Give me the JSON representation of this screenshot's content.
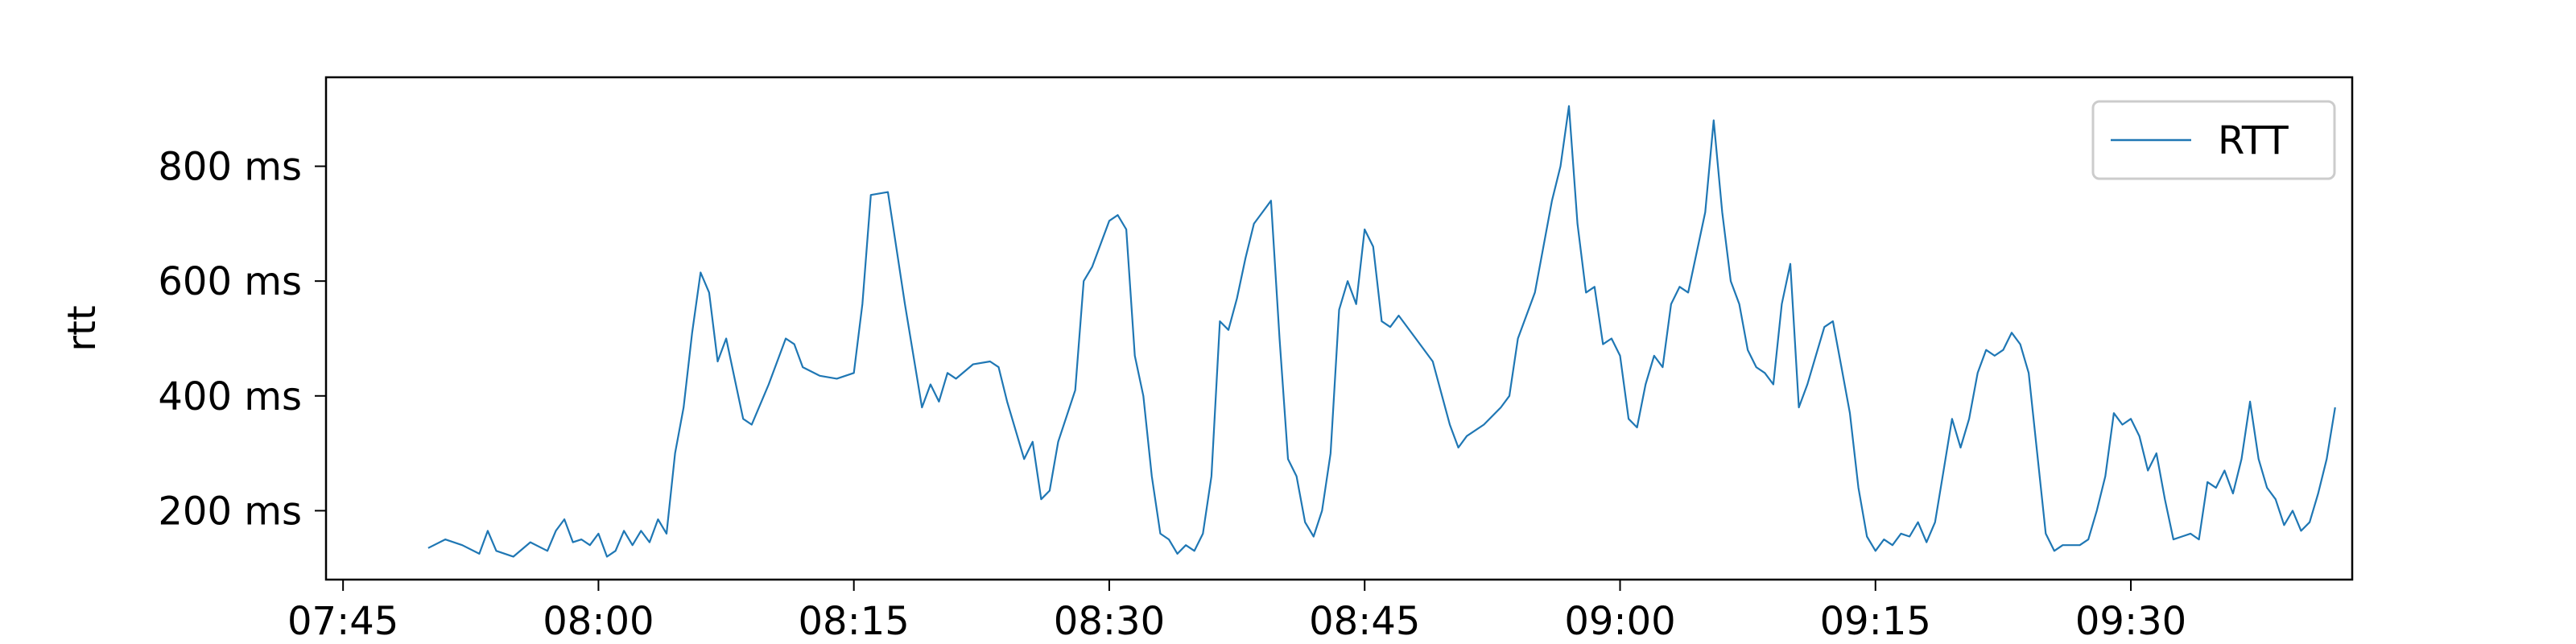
{
  "chart_data": {
    "type": "line",
    "title": "",
    "xlabel": "",
    "ylabel": "rtt",
    "y_unit": "ms",
    "x_tick_labels": [
      "07:45",
      "08:00",
      "08:15",
      "08:30",
      "08:45",
      "09:00",
      "09:15",
      "09:30"
    ],
    "y_tick_labels": [
      "200 ms",
      "400 ms",
      "600 ms",
      "800 ms"
    ],
    "y_ticks": [
      200,
      400,
      600,
      800
    ],
    "xlim": [
      "07:44",
      "09:43"
    ],
    "ylim": [
      80,
      955
    ],
    "grid": false,
    "legend_position": "top-right",
    "series": [
      {
        "name": "RTT",
        "color": "#1f77b4",
        "points": [
          [
            "07:50",
            135
          ],
          [
            "07:51",
            150
          ],
          [
            "07:52",
            140
          ],
          [
            "07:53",
            125
          ],
          [
            "07:53:30",
            165
          ],
          [
            "07:54",
            130
          ],
          [
            "07:55",
            120
          ],
          [
            "07:56",
            145
          ],
          [
            "07:57",
            130
          ],
          [
            "07:57:30",
            165
          ],
          [
            "07:58",
            185
          ],
          [
            "07:58:30",
            145
          ],
          [
            "07:59",
            150
          ],
          [
            "07:59:30",
            140
          ],
          [
            "08:00",
            160
          ],
          [
            "08:00:30",
            120
          ],
          [
            "08:01",
            130
          ],
          [
            "08:01:30",
            165
          ],
          [
            "08:02",
            140
          ],
          [
            "08:02:30",
            165
          ],
          [
            "08:03",
            145
          ],
          [
            "08:03:30",
            185
          ],
          [
            "08:04",
            160
          ],
          [
            "08:04:30",
            300
          ],
          [
            "08:05",
            380
          ],
          [
            "08:05:30",
            510
          ],
          [
            "08:06",
            615
          ],
          [
            "08:06:30",
            580
          ],
          [
            "08:07",
            460
          ],
          [
            "08:07:30",
            500
          ],
          [
            "08:08",
            430
          ],
          [
            "08:08:30",
            360
          ],
          [
            "08:09",
            350
          ],
          [
            "08:10",
            420
          ],
          [
            "08:11",
            500
          ],
          [
            "08:11:30",
            490
          ],
          [
            "08:12",
            450
          ],
          [
            "08:13",
            435
          ],
          [
            "08:14",
            430
          ],
          [
            "08:15",
            440
          ],
          [
            "08:15:30",
            560
          ],
          [
            "08:16",
            750
          ],
          [
            "08:17",
            755
          ],
          [
            "08:18",
            560
          ],
          [
            "08:19",
            380
          ],
          [
            "08:19:30",
            420
          ],
          [
            "08:20",
            390
          ],
          [
            "08:20:30",
            440
          ],
          [
            "08:21",
            430
          ],
          [
            "08:22",
            455
          ],
          [
            "08:23",
            460
          ],
          [
            "08:23:30",
            450
          ],
          [
            "08:24",
            390
          ],
          [
            "08:25",
            290
          ],
          [
            "08:25:30",
            320
          ],
          [
            "08:26",
            220
          ],
          [
            "08:26:30",
            235
          ],
          [
            "08:27",
            320
          ],
          [
            "08:28",
            410
          ],
          [
            "08:28:30",
            600
          ],
          [
            "08:29",
            625
          ],
          [
            "08:30",
            705
          ],
          [
            "08:30:30",
            715
          ],
          [
            "08:31",
            690
          ],
          [
            "08:31:30",
            470
          ],
          [
            "08:32",
            400
          ],
          [
            "08:32:30",
            260
          ],
          [
            "08:33",
            160
          ],
          [
            "08:33:30",
            150
          ],
          [
            "08:34",
            125
          ],
          [
            "08:34:30",
            140
          ],
          [
            "08:35",
            130
          ],
          [
            "08:35:30",
            160
          ],
          [
            "08:36",
            260
          ],
          [
            "08:36:30",
            530
          ],
          [
            "08:37",
            515
          ],
          [
            "08:37:30",
            570
          ],
          [
            "08:38",
            640
          ],
          [
            "08:38:30",
            700
          ],
          [
            "08:39",
            720
          ],
          [
            "08:39:30",
            740
          ],
          [
            "08:40",
            500
          ],
          [
            "08:40:30",
            290
          ],
          [
            "08:41",
            260
          ],
          [
            "08:41:30",
            180
          ],
          [
            "08:42",
            155
          ],
          [
            "08:42:30",
            200
          ],
          [
            "08:43",
            300
          ],
          [
            "08:43:30",
            550
          ],
          [
            "08:44",
            600
          ],
          [
            "08:44:30",
            560
          ],
          [
            "08:45",
            690
          ],
          [
            "08:45:30",
            660
          ],
          [
            "08:46",
            530
          ],
          [
            "08:46:30",
            520
          ],
          [
            "08:47",
            540
          ],
          [
            "08:48",
            500
          ],
          [
            "08:49",
            460
          ],
          [
            "08:50",
            350
          ],
          [
            "08:50:30",
            310
          ],
          [
            "08:51",
            330
          ],
          [
            "08:52",
            350
          ],
          [
            "08:53",
            380
          ],
          [
            "08:53:30",
            400
          ],
          [
            "08:54",
            500
          ],
          [
            "08:55",
            580
          ],
          [
            "08:56",
            740
          ],
          [
            "08:56:30",
            800
          ],
          [
            "08:57",
            905
          ],
          [
            "08:57:30",
            700
          ],
          [
            "08:58",
            580
          ],
          [
            "08:58:30",
            590
          ],
          [
            "08:59",
            490
          ],
          [
            "08:59:30",
            500
          ],
          [
            "09:00",
            470
          ],
          [
            "09:00:30",
            360
          ],
          [
            "09:01",
            345
          ],
          [
            "09:01:30",
            420
          ],
          [
            "09:02",
            470
          ],
          [
            "09:02:30",
            450
          ],
          [
            "09:03",
            560
          ],
          [
            "09:03:30",
            590
          ],
          [
            "09:04",
            580
          ],
          [
            "09:05",
            720
          ],
          [
            "09:05:30",
            880
          ],
          [
            "09:06",
            720
          ],
          [
            "09:06:30",
            600
          ],
          [
            "09:07",
            560
          ],
          [
            "09:07:30",
            480
          ],
          [
            "09:08",
            450
          ],
          [
            "09:08:30",
            440
          ],
          [
            "09:09",
            420
          ],
          [
            "09:09:30",
            560
          ],
          [
            "09:10",
            630
          ],
          [
            "09:10:30",
            380
          ],
          [
            "09:11",
            420
          ],
          [
            "09:11:30",
            470
          ],
          [
            "09:12",
            520
          ],
          [
            "09:12:30",
            530
          ],
          [
            "09:13",
            450
          ],
          [
            "09:13:30",
            370
          ],
          [
            "09:14",
            240
          ],
          [
            "09:14:30",
            155
          ],
          [
            "09:15",
            130
          ],
          [
            "09:15:30",
            150
          ],
          [
            "09:16",
            140
          ],
          [
            "09:16:30",
            160
          ],
          [
            "09:17",
            155
          ],
          [
            "09:17:30",
            180
          ],
          [
            "09:18",
            145
          ],
          [
            "09:18:30",
            180
          ],
          [
            "09:19",
            270
          ],
          [
            "09:19:30",
            360
          ],
          [
            "09:20",
            310
          ],
          [
            "09:20:30",
            360
          ],
          [
            "09:21",
            440
          ],
          [
            "09:21:30",
            480
          ],
          [
            "09:22",
            470
          ],
          [
            "09:22:30",
            480
          ],
          [
            "09:23",
            510
          ],
          [
            "09:23:30",
            490
          ],
          [
            "09:24",
            440
          ],
          [
            "09:24:30",
            300
          ],
          [
            "09:25",
            160
          ],
          [
            "09:25:30",
            130
          ],
          [
            "09:26",
            140
          ],
          [
            "09:27",
            140
          ],
          [
            "09:27:30",
            150
          ],
          [
            "09:28",
            200
          ],
          [
            "09:28:30",
            260
          ],
          [
            "09:29",
            370
          ],
          [
            "09:29:30",
            350
          ],
          [
            "09:30",
            360
          ],
          [
            "09:30:30",
            330
          ],
          [
            "09:31",
            270
          ],
          [
            "09:31:30",
            300
          ],
          [
            "09:32",
            220
          ],
          [
            "09:32:30",
            150
          ],
          [
            "09:33",
            155
          ],
          [
            "09:33:30",
            160
          ],
          [
            "09:34",
            150
          ],
          [
            "09:34:30",
            250
          ],
          [
            "09:35",
            240
          ],
          [
            "09:35:30",
            270
          ],
          [
            "09:36",
            230
          ],
          [
            "09:36:30",
            290
          ],
          [
            "09:37",
            390
          ],
          [
            "09:37:30",
            290
          ],
          [
            "09:38",
            240
          ],
          [
            "09:38:30",
            220
          ],
          [
            "09:39",
            175
          ],
          [
            "09:39:30",
            200
          ],
          [
            "09:40",
            165
          ],
          [
            "09:40:30",
            180
          ],
          [
            "09:41",
            230
          ],
          [
            "09:41:30",
            290
          ],
          [
            "09:42",
            380
          ]
        ]
      }
    ]
  }
}
